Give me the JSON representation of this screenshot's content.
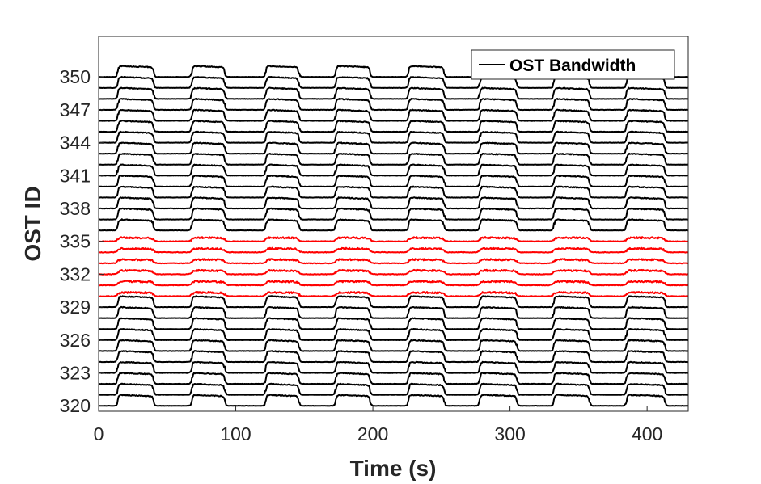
{
  "chart_data": {
    "type": "line",
    "xlabel": "Time (s)",
    "ylabel": "OST ID",
    "xlim": [
      0,
      430
    ],
    "ylim": [
      319.5,
      353.7
    ],
    "x_ticks": [
      0,
      100,
      200,
      300,
      400
    ],
    "y_ticks": [
      320,
      323,
      326,
      329,
      332,
      335,
      338,
      341,
      344,
      347,
      350
    ],
    "grid": false,
    "legend": {
      "entries": [
        "OST Bandwidth"
      ],
      "placement": "top-right"
    },
    "colors": {
      "normal": "#000000",
      "highlight": "#ff0000",
      "axes": "#262626"
    },
    "series_ids": [
      320,
      321,
      322,
      323,
      324,
      325,
      326,
      327,
      328,
      329,
      330,
      331,
      332,
      333,
      334,
      335,
      336,
      337,
      338,
      339,
      340,
      341,
      342,
      343,
      344,
      345,
      346,
      347,
      348,
      349,
      350
    ],
    "highlighted_ids": [
      330,
      331,
      332,
      333,
      334,
      335
    ],
    "bursts_s": [
      [
        14,
        40
      ],
      [
        68,
        92
      ],
      [
        122,
        146
      ],
      [
        173,
        198
      ],
      [
        226,
        252
      ],
      [
        278,
        305
      ],
      [
        332,
        358
      ],
      [
        385,
        413
      ]
    ],
    "burst_amplitude_normal": 1.0,
    "burst_amplitude_highlight": 0.35
  }
}
